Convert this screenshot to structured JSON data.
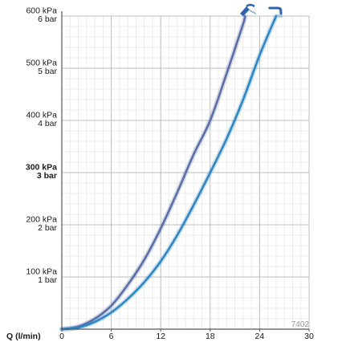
{
  "chart_data": {
    "type": "line",
    "xlabel": "Q (l/min)",
    "xlim": [
      0,
      30
    ],
    "ylim": [
      0,
      600
    ],
    "x_ticks": [
      {
        "value": 0,
        "label": "0"
      },
      {
        "value": 6,
        "label": "6"
      },
      {
        "value": 12,
        "label": "12"
      },
      {
        "value": 18,
        "label": "18"
      },
      {
        "value": 24,
        "label": "24"
      },
      {
        "value": 30,
        "label": "30"
      }
    ],
    "y_ticks": [
      {
        "value": 100,
        "label_kpa": "100 kPa",
        "label_bar": "1 bar",
        "bold": false
      },
      {
        "value": 200,
        "label_kpa": "200 kPa",
        "label_bar": "2 bar",
        "bold": false
      },
      {
        "value": 300,
        "label_kpa": "300 kPa",
        "label_bar": "3 bar",
        "bold": true
      },
      {
        "value": 400,
        "label_kpa": "400 kPa",
        "label_bar": "4 bar",
        "bold": false
      },
      {
        "value": 500,
        "label_kpa": "500 kPa",
        "label_bar": "5 bar",
        "bold": false
      },
      {
        "value": 600,
        "label_kpa": "600 kPa",
        "label_bar": "6 bar",
        "bold": false
      }
    ],
    "grid": true,
    "code": "7402",
    "series": [
      {
        "icon": "hand-shower-icon",
        "color": "#5a6fa6",
        "x": [
          0,
          2,
          4,
          6,
          8,
          10,
          12,
          14,
          16,
          18,
          20,
          22,
          22.2
        ],
        "y": [
          0,
          5,
          20,
          45,
          85,
          133,
          193,
          262,
          335,
          400,
          490,
          585,
          600
        ]
      },
      {
        "icon": "bath-spout-icon",
        "color": "#2f86c4",
        "x": [
          0,
          2,
          4,
          6,
          8,
          10,
          12,
          14,
          16,
          18,
          20,
          22,
          24,
          26
        ],
        "y": [
          0,
          3,
          14,
          32,
          58,
          90,
          130,
          180,
          238,
          300,
          365,
          440,
          525,
          600
        ]
      }
    ]
  }
}
